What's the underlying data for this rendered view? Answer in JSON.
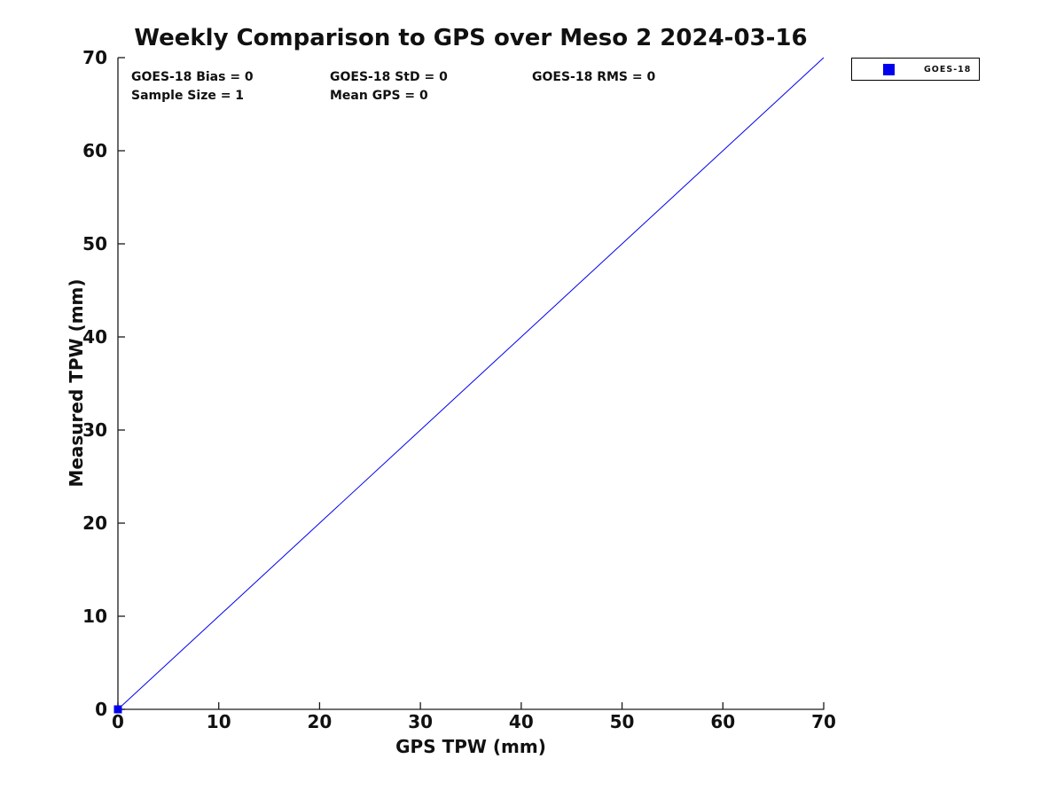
{
  "chart_data": {
    "type": "scatter",
    "title": "Weekly Comparison to GPS over Meso 2 2024-03-16",
    "xlabel": "GPS TPW (mm)",
    "ylabel": "Measured TPW (mm)",
    "xlim": [
      0,
      70
    ],
    "ylim": [
      0,
      70
    ],
    "x_ticks": [
      0,
      10,
      20,
      30,
      40,
      50,
      60,
      70
    ],
    "y_ticks": [
      0,
      10,
      20,
      30,
      40,
      50,
      60,
      70
    ],
    "grid": false,
    "axis_color": "#1a1a1a",
    "series": [
      {
        "name": "GOES-18",
        "marker": "square",
        "color": "#0000ee",
        "points": [
          [
            0,
            0
          ]
        ]
      }
    ],
    "reference_line": {
      "x": [
        0,
        70
      ],
      "y": [
        0,
        70
      ],
      "color": "#0000ee",
      "line_width": 1
    },
    "annotations": {
      "bias": "GOES-18 Bias = 0",
      "std": "GOES-18 StD = 0",
      "rms": "GOES-18 RMS = 0",
      "sample_size": "Sample Size = 1",
      "mean_gps": "Mean GPS = 0"
    },
    "legend": {
      "position": "outside-top-right",
      "entries": [
        {
          "label": "GOES-18",
          "color": "#0000ee",
          "marker": "square"
        }
      ]
    }
  }
}
